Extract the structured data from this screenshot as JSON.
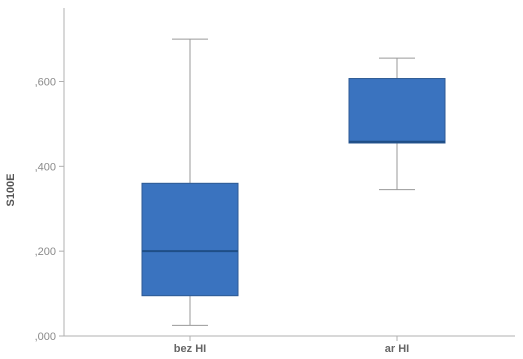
{
  "chart_data": {
    "type": "box",
    "ylabel": "S100E",
    "ylim": [
      0.0,
      0.75
    ],
    "y_ticks": [
      0.0,
      0.2,
      0.4,
      0.6
    ],
    "y_tick_labels": [
      ",000",
      ",200",
      ",400",
      ",600"
    ],
    "grid": false,
    "categories": [
      "bez HI",
      "ar HI"
    ],
    "boxes": [
      {
        "category": "bez HI",
        "min": 0.025,
        "q1": 0.095,
        "median": 0.2,
        "q3": 0.36,
        "max": 0.7
      },
      {
        "category": "ar HI",
        "min": 0.345,
        "q1": 0.455,
        "median": 0.458,
        "q3": 0.607,
        "max": 0.655
      }
    ],
    "colors": {
      "box_fill": "#3a73bf",
      "box_edge": "#2d5a94",
      "whisker": "#9a9a9a",
      "axis": "#b0b0b0"
    }
  }
}
